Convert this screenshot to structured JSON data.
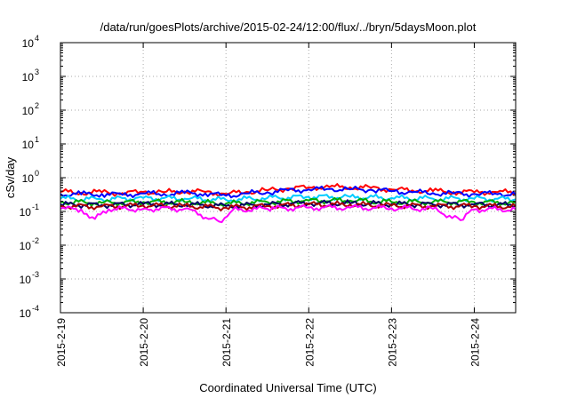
{
  "chart_data": {
    "type": "line",
    "title": "/data/run/goesPlots/archive/2015-02-24/12:00/flux/../bryn/5daysMoon.plot",
    "xlabel": "Coordinated Universal Time (UTC)",
    "ylabel": "cSv/day",
    "yscale": "log",
    "ylim": [
      0.0001,
      10000
    ],
    "y_ticks": [
      {
        "value": 0.0001,
        "base": "10",
        "exp": "-4"
      },
      {
        "value": 0.001,
        "base": "10",
        "exp": "-3"
      },
      {
        "value": 0.01,
        "base": "10",
        "exp": "-2"
      },
      {
        "value": 0.1,
        "base": "10",
        "exp": "-1"
      },
      {
        "value": 1,
        "base": "10",
        "exp": "0"
      },
      {
        "value": 10,
        "base": "10",
        "exp": "1"
      },
      {
        "value": 100,
        "base": "10",
        "exp": "2"
      },
      {
        "value": 1000,
        "base": "10",
        "exp": "3"
      },
      {
        "value": 10000,
        "base": "10",
        "exp": "4"
      }
    ],
    "xlim": [
      "2015-02-19",
      "2015-02-24T12:00"
    ],
    "x_ticks": [
      "2015-2-19",
      "2015-2-20",
      "2015-2-21",
      "2015-2-22",
      "2015-2-23",
      "2015-2-24"
    ],
    "grid": true,
    "series": [
      {
        "color": "#ff0000",
        "values": [
          {
            "x": "2015-02-19T00:00",
            "y": 0.38
          },
          {
            "x": "2015-02-19T06:00",
            "y": 0.36
          },
          {
            "x": "2015-02-19T12:00",
            "y": 0.37
          },
          {
            "x": "2015-02-19T18:00",
            "y": 0.35
          },
          {
            "x": "2015-02-20T00:00",
            "y": 0.38
          },
          {
            "x": "2015-02-20T06:00",
            "y": 0.37
          },
          {
            "x": "2015-02-20T12:00",
            "y": 0.39
          },
          {
            "x": "2015-02-20T18:00",
            "y": 0.38
          },
          {
            "x": "2015-02-21T00:00",
            "y": 0.33
          },
          {
            "x": "2015-02-21T06:00",
            "y": 0.38
          },
          {
            "x": "2015-02-21T12:00",
            "y": 0.42
          },
          {
            "x": "2015-02-21T18:00",
            "y": 0.48
          },
          {
            "x": "2015-02-22T00:00",
            "y": 0.52
          },
          {
            "x": "2015-02-22T06:00",
            "y": 0.53
          },
          {
            "x": "2015-02-22T12:00",
            "y": 0.52
          },
          {
            "x": "2015-02-22T18:00",
            "y": 0.5
          },
          {
            "x": "2015-02-23T00:00",
            "y": 0.45
          },
          {
            "x": "2015-02-23T06:00",
            "y": 0.42
          },
          {
            "x": "2015-02-23T12:00",
            "y": 0.4
          },
          {
            "x": "2015-02-23T18:00",
            "y": 0.38
          },
          {
            "x": "2015-02-24T00:00",
            "y": 0.37
          },
          {
            "x": "2015-02-24T06:00",
            "y": 0.38
          },
          {
            "x": "2015-02-24T12:00",
            "y": 0.36
          }
        ]
      },
      {
        "color": "#0000ff",
        "values": [
          {
            "x": "2015-02-19T00:00",
            "y": 0.33
          },
          {
            "x": "2015-02-19T06:00",
            "y": 0.32
          },
          {
            "x": "2015-02-19T12:00",
            "y": 0.33
          },
          {
            "x": "2015-02-19T18:00",
            "y": 0.31
          },
          {
            "x": "2015-02-20T00:00",
            "y": 0.34
          },
          {
            "x": "2015-02-20T06:00",
            "y": 0.33
          },
          {
            "x": "2015-02-20T12:00",
            "y": 0.35
          },
          {
            "x": "2015-02-20T18:00",
            "y": 0.34
          },
          {
            "x": "2015-02-21T00:00",
            "y": 0.29
          },
          {
            "x": "2015-02-21T06:00",
            "y": 0.34
          },
          {
            "x": "2015-02-21T12:00",
            "y": 0.37
          },
          {
            "x": "2015-02-21T18:00",
            "y": 0.42
          },
          {
            "x": "2015-02-22T00:00",
            "y": 0.45
          },
          {
            "x": "2015-02-22T06:00",
            "y": 0.46
          },
          {
            "x": "2015-02-22T12:00",
            "y": 0.45
          },
          {
            "x": "2015-02-22T18:00",
            "y": 0.44
          },
          {
            "x": "2015-02-23T00:00",
            "y": 0.4
          },
          {
            "x": "2015-02-23T06:00",
            "y": 0.37
          },
          {
            "x": "2015-02-23T12:00",
            "y": 0.35
          },
          {
            "x": "2015-02-23T18:00",
            "y": 0.34
          },
          {
            "x": "2015-02-24T00:00",
            "y": 0.33
          },
          {
            "x": "2015-02-24T06:00",
            "y": 0.34
          },
          {
            "x": "2015-02-24T12:00",
            "y": 0.32
          }
        ]
      },
      {
        "color": "#00ccff",
        "values": [
          {
            "x": "2015-02-19T00:00",
            "y": 0.24
          },
          {
            "x": "2015-02-19T12:00",
            "y": 0.23
          },
          {
            "x": "2015-02-20T00:00",
            "y": 0.25
          },
          {
            "x": "2015-02-20T12:00",
            "y": 0.24
          },
          {
            "x": "2015-02-21T00:00",
            "y": 0.22
          },
          {
            "x": "2015-02-21T12:00",
            "y": 0.25
          },
          {
            "x": "2015-02-22T00:00",
            "y": 0.27
          },
          {
            "x": "2015-02-22T12:00",
            "y": 0.27
          },
          {
            "x": "2015-02-23T00:00",
            "y": 0.25
          },
          {
            "x": "2015-02-23T12:00",
            "y": 0.24
          },
          {
            "x": "2015-02-24T00:00",
            "y": 0.24
          },
          {
            "x": "2015-02-24T12:00",
            "y": 0.23
          }
        ]
      },
      {
        "color": "#00aa00",
        "values": [
          {
            "x": "2015-02-19T00:00",
            "y": 0.19
          },
          {
            "x": "2015-02-19T12:00",
            "y": 0.18
          },
          {
            "x": "2015-02-20T00:00",
            "y": 0.19
          },
          {
            "x": "2015-02-20T12:00",
            "y": 0.19
          },
          {
            "x": "2015-02-21T00:00",
            "y": 0.17
          },
          {
            "x": "2015-02-21T12:00",
            "y": 0.19
          },
          {
            "x": "2015-02-22T00:00",
            "y": 0.21
          },
          {
            "x": "2015-02-22T12:00",
            "y": 0.21
          },
          {
            "x": "2015-02-23T00:00",
            "y": 0.19
          },
          {
            "x": "2015-02-23T12:00",
            "y": 0.19
          },
          {
            "x": "2015-02-24T00:00",
            "y": 0.19
          },
          {
            "x": "2015-02-24T12:00",
            "y": 0.18
          }
        ]
      },
      {
        "color": "#000066",
        "values": [
          {
            "x": "2015-02-19T00:00",
            "y": 0.16
          },
          {
            "x": "2015-02-19T12:00",
            "y": 0.155
          },
          {
            "x": "2015-02-20T00:00",
            "y": 0.165
          },
          {
            "x": "2015-02-20T12:00",
            "y": 0.16
          },
          {
            "x": "2015-02-21T00:00",
            "y": 0.145
          },
          {
            "x": "2015-02-21T12:00",
            "y": 0.16
          },
          {
            "x": "2015-02-22T00:00",
            "y": 0.175
          },
          {
            "x": "2015-02-22T12:00",
            "y": 0.175
          },
          {
            "x": "2015-02-23T00:00",
            "y": 0.165
          },
          {
            "x": "2015-02-23T12:00",
            "y": 0.16
          },
          {
            "x": "2015-02-24T00:00",
            "y": 0.16
          },
          {
            "x": "2015-02-24T12:00",
            "y": 0.155
          }
        ]
      },
      {
        "color": "#aa0000",
        "values": [
          {
            "x": "2015-02-19T00:00",
            "y": 0.145
          },
          {
            "x": "2015-02-19T12:00",
            "y": 0.14
          },
          {
            "x": "2015-02-20T00:00",
            "y": 0.15
          },
          {
            "x": "2015-02-20T12:00",
            "y": 0.145
          },
          {
            "x": "2015-02-21T00:00",
            "y": 0.13
          },
          {
            "x": "2015-02-21T12:00",
            "y": 0.145
          },
          {
            "x": "2015-02-22T00:00",
            "y": 0.16
          },
          {
            "x": "2015-02-22T12:00",
            "y": 0.16
          },
          {
            "x": "2015-02-23T00:00",
            "y": 0.15
          },
          {
            "x": "2015-02-23T12:00",
            "y": 0.145
          },
          {
            "x": "2015-02-24T00:00",
            "y": 0.145
          },
          {
            "x": "2015-02-24T12:00",
            "y": 0.14
          }
        ]
      },
      {
        "color": "#ff00ff",
        "values": [
          {
            "x": "2015-02-19T00:00",
            "y": 0.12
          },
          {
            "x": "2015-02-19T06:00",
            "y": 0.115
          },
          {
            "x": "2015-02-19T10:00",
            "y": 0.06
          },
          {
            "x": "2015-02-19T14:00",
            "y": 0.115
          },
          {
            "x": "2015-02-20T00:00",
            "y": 0.12
          },
          {
            "x": "2015-02-20T12:00",
            "y": 0.12
          },
          {
            "x": "2015-02-20T22:00",
            "y": 0.05
          },
          {
            "x": "2015-02-21T02:00",
            "y": 0.11
          },
          {
            "x": "2015-02-21T12:00",
            "y": 0.12
          },
          {
            "x": "2015-02-22T00:00",
            "y": 0.13
          },
          {
            "x": "2015-02-22T12:00",
            "y": 0.13
          },
          {
            "x": "2015-02-23T00:00",
            "y": 0.125
          },
          {
            "x": "2015-02-23T12:00",
            "y": 0.12
          },
          {
            "x": "2015-02-23T20:00",
            "y": 0.055
          },
          {
            "x": "2015-02-24T00:00",
            "y": 0.115
          },
          {
            "x": "2015-02-24T12:00",
            "y": 0.115
          }
        ]
      }
    ]
  }
}
